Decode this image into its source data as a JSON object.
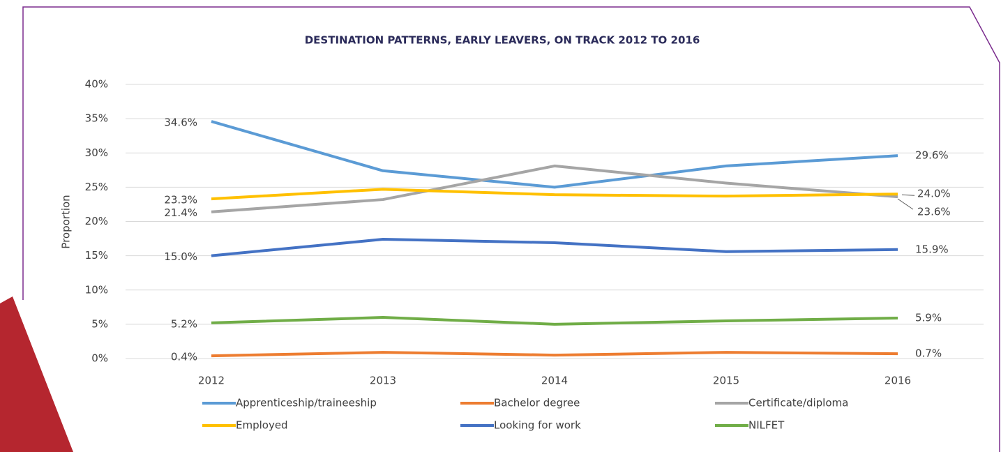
{
  "chart_data": {
    "type": "line",
    "title": "DESTINATION PATTERNS, EARLY LEAVERS, ON TRACK 2012 TO 2016",
    "y_label": "Proportion",
    "categories": [
      "2012",
      "2013",
      "2014",
      "2015",
      "2016"
    ],
    "ylim": [
      0,
      40
    ],
    "yticks": [
      {
        "value": 0,
        "label": "0%"
      },
      {
        "value": 5,
        "label": "5%"
      },
      {
        "value": 10,
        "label": "10%"
      },
      {
        "value": 15,
        "label": "15%"
      },
      {
        "value": 20,
        "label": "20%"
      },
      {
        "value": 25,
        "label": "25%"
      },
      {
        "value": 30,
        "label": "30%"
      },
      {
        "value": 35,
        "label": "35%"
      },
      {
        "value": 40,
        "label": "40%"
      }
    ],
    "grid": true,
    "legend": "bottom",
    "series": [
      {
        "name": "Apprenticeship/traineeship",
        "color": "#5b9bd5",
        "values": [
          34.6,
          27.4,
          25.0,
          28.1,
          29.6
        ],
        "value_labels": [
          "34.6%",
          null,
          null,
          null,
          "29.6%"
        ]
      },
      {
        "name": "Bachelor degree",
        "color": "#ed7d31",
        "values": [
          0.4,
          0.9,
          0.5,
          0.9,
          0.7
        ],
        "value_labels": [
          "0.4%",
          null,
          null,
          null,
          "0.7%"
        ]
      },
      {
        "name": "Certificate/diploma",
        "color": "#a5a5a5",
        "values": [
          21.4,
          23.2,
          28.1,
          25.6,
          23.6
        ],
        "value_labels": [
          "21.4%",
          null,
          null,
          null,
          "23.6%"
        ]
      },
      {
        "name": "Employed",
        "color": "#ffc000",
        "values": [
          23.3,
          24.7,
          23.9,
          23.7,
          24.0
        ],
        "value_labels": [
          "23.3%",
          null,
          null,
          null,
          "24.0%"
        ]
      },
      {
        "name": "Looking for work",
        "color": "#4472c4",
        "values": [
          15.0,
          17.4,
          16.9,
          15.6,
          15.9
        ],
        "value_labels": [
          "15.0%",
          null,
          null,
          null,
          "15.9%"
        ]
      },
      {
        "name": "NILFET",
        "color": "#70ad47",
        "values": [
          5.2,
          6.0,
          5.0,
          5.5,
          5.9
        ],
        "value_labels": [
          "5.2%",
          null,
          null,
          null,
          "5.9%"
        ]
      }
    ]
  }
}
